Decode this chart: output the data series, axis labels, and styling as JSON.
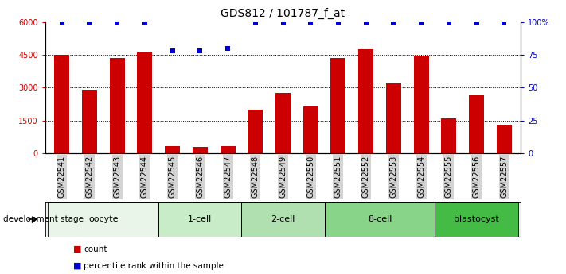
{
  "title": "GDS812 / 101787_f_at",
  "samples": [
    "GSM22541",
    "GSM22542",
    "GSM22543",
    "GSM22544",
    "GSM22545",
    "GSM22546",
    "GSM22547",
    "GSM22548",
    "GSM22549",
    "GSM22550",
    "GSM22551",
    "GSM22552",
    "GSM22553",
    "GSM22554",
    "GSM22555",
    "GSM22556",
    "GSM22557"
  ],
  "counts": [
    4500,
    2900,
    4350,
    4600,
    350,
    300,
    330,
    2000,
    2750,
    2150,
    4350,
    4750,
    3200,
    4450,
    1600,
    2650,
    1300
  ],
  "percentile_ranks": [
    100,
    100,
    100,
    100,
    78,
    78,
    80,
    100,
    100,
    100,
    100,
    100,
    100,
    100,
    100,
    100,
    100
  ],
  "bar_color": "#cc0000",
  "dot_color": "#0000cc",
  "ylim_left": [
    0,
    6000
  ],
  "ylim_right": [
    0,
    100
  ],
  "yticks_left": [
    0,
    1500,
    3000,
    4500,
    6000
  ],
  "yticks_right": [
    0,
    25,
    50,
    75,
    100
  ],
  "groups": [
    {
      "label": "oocyte",
      "start": 0,
      "end": 3,
      "color": "#e8f5e8"
    },
    {
      "label": "1-cell",
      "start": 4,
      "end": 6,
      "color": "#c8ecc8"
    },
    {
      "label": "2-cell",
      "start": 7,
      "end": 9,
      "color": "#b0e0b0"
    },
    {
      "label": "8-cell",
      "start": 10,
      "end": 13,
      "color": "#88d488"
    },
    {
      "label": "blastocyst",
      "start": 14,
      "end": 16,
      "color": "#44bb44"
    }
  ],
  "dev_stage_label": "development stage",
  "legend_count_label": "count",
  "legend_pct_label": "percentile rank within the sample",
  "background_color": "#ffffff",
  "title_fontsize": 10,
  "tick_fontsize": 7,
  "label_fontsize": 8,
  "group_fontsize": 8
}
